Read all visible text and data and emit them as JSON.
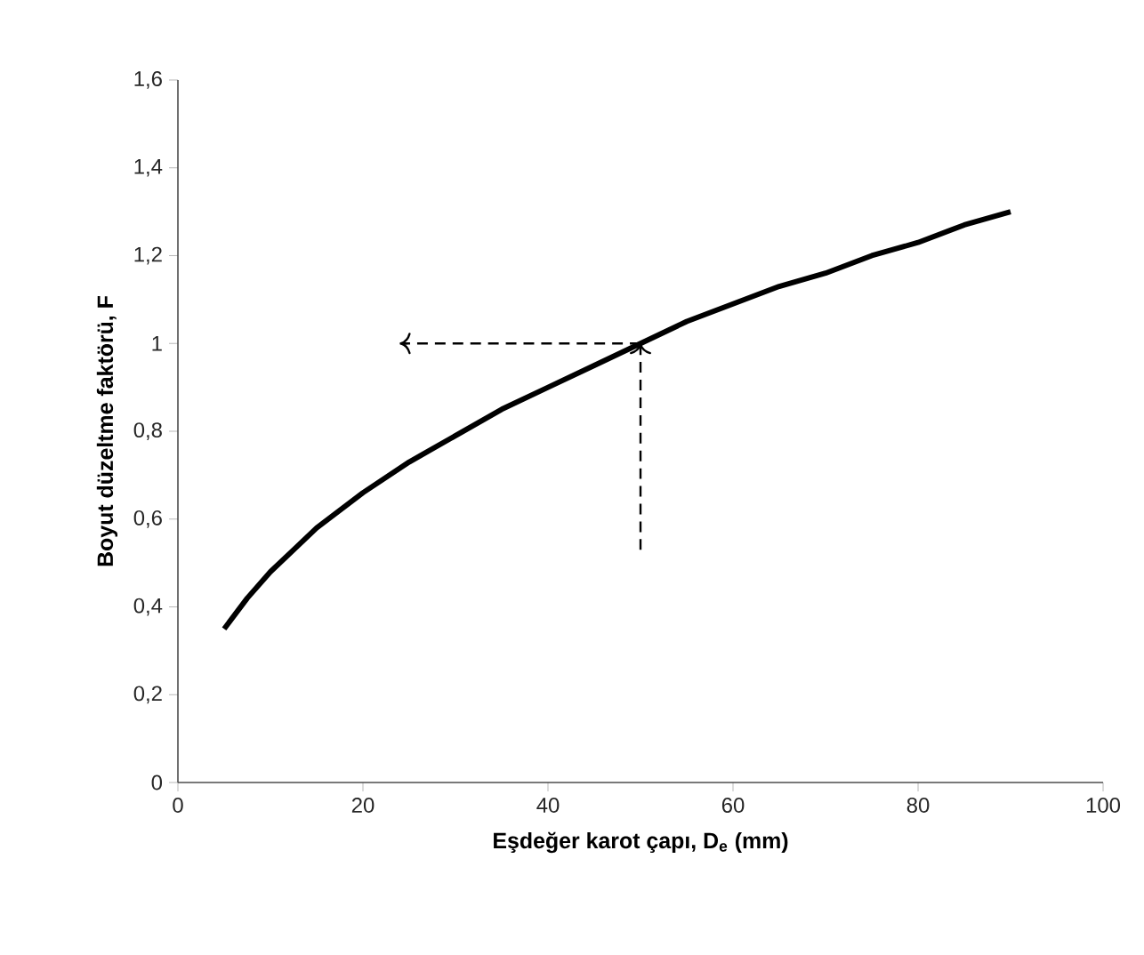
{
  "chart_data": {
    "type": "line",
    "xlabel": "Eşdeğer karot çapı, D$_{e}$ (mm)",
    "ylabel": "Boyut düzeltme faktörü, F",
    "xlim": [
      0,
      100
    ],
    "xticks": [
      0,
      20,
      40,
      60,
      80,
      100
    ],
    "ylim": [
      0,
      1.6
    ],
    "yticks": [
      0,
      {
        "value": 0.2,
        "label": "0,2"
      },
      {
        "value": 0.4,
        "label": "0,4"
      },
      {
        "value": 0.6,
        "label": "0,6"
      },
      {
        "value": 0.8,
        "label": "0,8"
      },
      1,
      {
        "value": 1.2,
        "label": "1,2"
      },
      {
        "value": 1.4,
        "label": "1,4"
      },
      {
        "value": 1.6,
        "label": "1,6"
      }
    ],
    "grid": false,
    "marker": "none",
    "line_style": "solid",
    "series": [
      {
        "color": "#000000",
        "x": [
          5,
          7.5,
          10,
          12.5,
          15,
          20,
          25,
          30,
          35,
          40,
          45,
          50,
          55,
          60,
          65,
          70,
          75,
          80,
          85,
          90
        ],
        "values": [
          0.35,
          0.42,
          0.48,
          0.53,
          0.58,
          0.66,
          0.73,
          0.79,
          0.85,
          0.9,
          0.95,
          1.0,
          1.05,
          1.09,
          1.13,
          1.16,
          1.2,
          1.23,
          1.27,
          1.3
        ]
      },
      {
        "color": "#000000",
        "type": "line",
        "line_style": "dashed",
        "x": [
          50,
          24
        ],
        "values": [
          1,
          1
        ]
      },
      {
        "color": "#000000",
        "type": "line",
        "line_style": "dashed",
        "x": [
          50,
          50
        ],
        "values": [
          0.53,
          1
        ]
      }
    ]
  }
}
